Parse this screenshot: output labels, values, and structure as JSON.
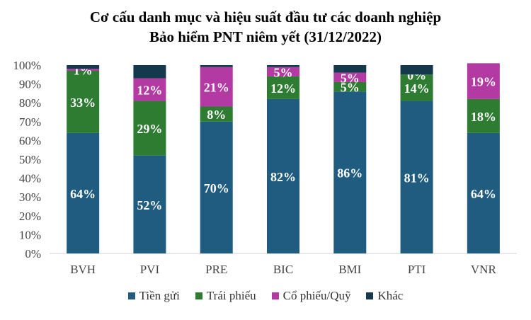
{
  "chart_data": {
    "type": "bar",
    "stacked": true,
    "title": [
      "Cơ cấu danh mục và hiệu suất đầu tư các doanh nghiệp",
      "Bảo hiểm PNT niêm yết (31/12/2022)"
    ],
    "categories": [
      "BVH",
      "PVI",
      "PRE",
      "BIC",
      "BMI",
      "PTI",
      "VNR"
    ],
    "series": [
      {
        "name": "Tiền gửi",
        "color": "#1f5c7f",
        "values": [
          64,
          52,
          70,
          82,
          86,
          81,
          64
        ],
        "labels": [
          "64%",
          "52%",
          "70%",
          "82%",
          "86%",
          "81%",
          "64%"
        ]
      },
      {
        "name": "Trái phiếu",
        "color": "#2e7b32",
        "values": [
          33,
          29,
          8,
          12,
          5,
          14,
          18
        ],
        "labels": [
          "33%",
          "29%",
          "8%",
          "12%",
          "5%",
          "14%",
          "18%"
        ]
      },
      {
        "name": "Cổ phiếu/Quỹ",
        "color": "#b33aa3",
        "values": [
          1,
          12,
          21,
          5,
          5,
          0,
          19
        ],
        "labels": [
          "1%",
          "12%",
          "21%",
          "5%",
          "5%",
          "0%",
          "19%"
        ]
      },
      {
        "name": "Khác",
        "color": "#14384c",
        "values": [
          2,
          7,
          1,
          1,
          4,
          5,
          0
        ],
        "labels": [
          "",
          "",
          "",
          "",
          "",
          "",
          ""
        ]
      }
    ],
    "y_ticks": [
      "0%",
      "10%",
      "20%",
      "30%",
      "40%",
      "50%",
      "60%",
      "70%",
      "80%",
      "90%",
      "100%"
    ],
    "ylim": [
      0,
      100
    ],
    "legend_position": "bottom"
  }
}
